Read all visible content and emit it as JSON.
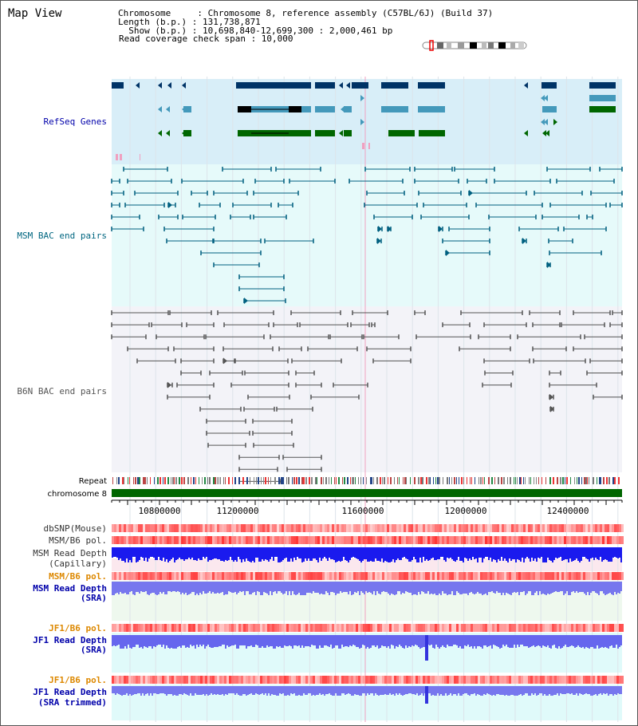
{
  "title": "Map View",
  "info": {
    "chromosome": "Chromosome     : Chromosome 8, reference assembly (C57BL/6J) (Build 37)",
    "length": "Length (b.p.) : 131,738,871",
    "show": "  Show (b.p.) : 10,698,840-12,699,300 : 2,000,461 bp",
    "coverage": "Read coverage check span : 10,000"
  },
  "tracks": {
    "refseq": "RefSeq Genes",
    "msm_bac": "MSM BAC end pairs",
    "b6n_bac": "B6N BAC end pairs",
    "repeat": "Repeat",
    "chromosome": "chromosome 8",
    "dbsnp": "dbSNP(Mouse)",
    "msm_b6_pol": "MSM/B6 pol.",
    "msm_read_depth_cap_1": "MSM Read Depth",
    "msm_read_depth_cap_2": "(Capillary)",
    "msm_b6_pol_2": "MSM/B6 pol.",
    "msm_read_depth_sra_1": "MSM Read Depth",
    "msm_read_depth_sra_2": "(SRA)",
    "jf1_b6_pol": "JF1/B6 pol.",
    "jf1_read_depth_sra_1": "JF1 Read Depth",
    "jf1_read_depth_sra_2": "(SRA)",
    "jf1_b6_pol_2": "JF1/B6 pol.",
    "jf1_read_depth_trim_1": "JF1 Read Depth",
    "jf1_read_depth_trim_2": "(SRA trimmed)"
  },
  "axis": {
    "ticks": [
      "10800000",
      "11200000",
      "11600000",
      "12000000",
      "12400000"
    ]
  },
  "colors": {
    "refseq_bg": "#d8eef8",
    "msm_bg": "#e6fafa",
    "b6n_bg": "#f3f3f8",
    "label_blue": "#0000aa",
    "label_teal": "#006680",
    "label_gray": "#555555",
    "label_orange": "#dd8800",
    "gene_dark": "#003366",
    "gene_light": "#4499bb",
    "gene_green": "#006600",
    "chromosome": "#006600",
    "msm_line": "#006080",
    "b6n_line": "#555555"
  }
}
